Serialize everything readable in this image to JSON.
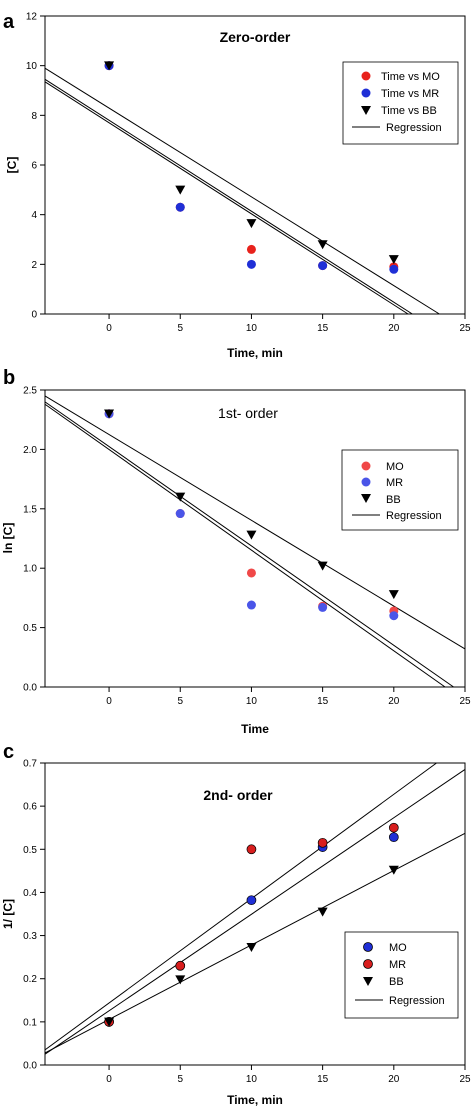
{
  "chart_data": [
    {
      "type": "scatter",
      "panel": "a",
      "title": "Zero-order",
      "xlabel": "Time, min",
      "ylabel": "[C]",
      "xlim": [
        -4.5,
        25
      ],
      "ylim": [
        0,
        12
      ],
      "xticks": [
        0,
        5,
        10,
        15,
        20,
        25
      ],
      "xtick_labels": [
        "0",
        "5",
        "10",
        "15",
        "20",
        "25"
      ],
      "yticks": [
        0,
        2,
        4,
        6,
        8,
        10,
        12
      ],
      "ytick_labels": [
        "0",
        "2",
        "4",
        "6",
        "8",
        "10",
        "12"
      ],
      "legend_position": "top-right",
      "series": [
        {
          "name": "Time vs MO",
          "marker": "circle",
          "color": "#e8221c",
          "x": [
            0,
            5,
            10,
            15,
            20
          ],
          "y": [
            10,
            4.3,
            2.6,
            1.95,
            1.9
          ]
        },
        {
          "name": "Time vs MR",
          "marker": "circle",
          "color": "#1f2fd6",
          "x": [
            0,
            5,
            10,
            15,
            20
          ],
          "y": [
            10,
            4.3,
            2.0,
            1.95,
            1.8
          ]
        },
        {
          "name": "Time vs BB",
          "marker": "triangle-down",
          "color": "#000000",
          "x": [
            0,
            5,
            10,
            15,
            20
          ],
          "y": [
            10,
            5.0,
            3.65,
            2.8,
            2.2
          ]
        }
      ],
      "regression_label": "Regression",
      "regression_lines": [
        {
          "x": [
            -4.5,
            21.3
          ],
          "y": [
            9.45,
            0
          ]
        },
        {
          "x": [
            -4.5,
            21.0
          ],
          "y": [
            9.35,
            0
          ]
        },
        {
          "x": [
            -4.5,
            23.2
          ],
          "y": [
            9.9,
            0
          ]
        }
      ]
    },
    {
      "type": "scatter",
      "panel": "b",
      "title": "1st- order",
      "xlabel": "Time",
      "ylabel": "ln [C]",
      "xlim": [
        -4.5,
        25
      ],
      "ylim": [
        0,
        2.5
      ],
      "xticks": [
        0,
        5,
        10,
        15,
        20,
        25
      ],
      "xtick_labels": [
        "0",
        "5",
        "10",
        "15",
        "20",
        "25"
      ],
      "yticks": [
        0,
        0.5,
        1.0,
        1.5,
        2.0,
        2.5
      ],
      "ytick_labels": [
        "0.0",
        "0.5",
        "1.0",
        "1.5",
        "2.0",
        "2.5"
      ],
      "legend_position": "top-right",
      "series": [
        {
          "name": "MO",
          "marker": "circle",
          "color": "#f04848",
          "x": [
            0,
            5,
            10,
            15,
            20
          ],
          "y": [
            2.3,
            1.46,
            0.96,
            0.68,
            0.64
          ]
        },
        {
          "name": "MR",
          "marker": "circle",
          "color": "#4a55e8",
          "x": [
            0,
            5,
            10,
            15,
            20
          ],
          "y": [
            2.3,
            1.46,
            0.69,
            0.67,
            0.6
          ]
        },
        {
          "name": "BB",
          "marker": "triangle-down",
          "color": "#000000",
          "x": [
            0,
            5,
            10,
            15,
            20
          ],
          "y": [
            2.3,
            1.6,
            1.28,
            1.02,
            0.78
          ]
        }
      ],
      "regression_label": "Regression",
      "regression_lines": [
        {
          "x": [
            -4.5,
            23.6
          ],
          "y": [
            2.38,
            0
          ]
        },
        {
          "x": [
            -4.5,
            24.2
          ],
          "y": [
            2.4,
            0
          ]
        },
        {
          "x": [
            -4.5,
            25.0
          ],
          "y": [
            2.45,
            0.32
          ]
        }
      ]
    },
    {
      "type": "scatter",
      "panel": "c",
      "title": "2nd- order",
      "xlabel": "Time, min",
      "ylabel": "1/ [C]",
      "xlim": [
        -4.5,
        25
      ],
      "ylim": [
        0,
        0.7
      ],
      "xticks": [
        0,
        5,
        10,
        15,
        20,
        25
      ],
      "xtick_labels": [
        "0",
        "5",
        "10",
        "15",
        "20",
        "25"
      ],
      "yticks": [
        0,
        0.1,
        0.2,
        0.3,
        0.4,
        0.5,
        0.6,
        0.7
      ],
      "ytick_labels": [
        "0.0",
        "0.1",
        "0.2",
        "0.3",
        "0.4",
        "0.5",
        "0.6",
        "0.7"
      ],
      "legend_position": "bottom-right",
      "series": [
        {
          "name": "MO",
          "marker": "circle",
          "color": "#1f2fd6",
          "x": [
            0,
            5,
            10,
            15,
            20
          ],
          "y": [
            0.1,
            0.23,
            0.382,
            0.505,
            0.528
          ]
        },
        {
          "name": "MR",
          "marker": "circle",
          "color": "#d81e1e",
          "x": [
            0,
            5,
            10,
            15,
            20
          ],
          "y": [
            0.1,
            0.23,
            0.5,
            0.515,
            0.55
          ]
        },
        {
          "name": "BB",
          "marker": "triangle-down",
          "color": "#000000",
          "x": [
            0,
            5,
            10,
            15,
            20
          ],
          "y": [
            0.1,
            0.198,
            0.273,
            0.355,
            0.452
          ]
        }
      ],
      "regression_label": "Regression",
      "regression_lines": [
        {
          "x": [
            -4.5,
            23.0
          ],
          "y": [
            0.035,
            0.7
          ]
        },
        {
          "x": [
            -4.5,
            25.0
          ],
          "y": [
            0.025,
            0.685
          ]
        },
        {
          "x": [
            -4.5,
            25.0
          ],
          "y": [
            0.028,
            0.537
          ]
        }
      ]
    }
  ]
}
